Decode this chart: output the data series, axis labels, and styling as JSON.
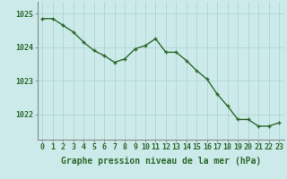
{
  "x": [
    0,
    1,
    2,
    3,
    4,
    5,
    6,
    7,
    8,
    9,
    10,
    11,
    12,
    13,
    14,
    15,
    16,
    17,
    18,
    19,
    20,
    21,
    22,
    23
  ],
  "y": [
    1024.85,
    1024.85,
    1024.65,
    1024.45,
    1024.15,
    1023.9,
    1023.75,
    1023.55,
    1023.65,
    1023.95,
    1024.05,
    1024.25,
    1023.85,
    1023.85,
    1023.6,
    1023.3,
    1023.05,
    1022.6,
    1022.25,
    1021.85,
    1021.85,
    1021.65,
    1021.65,
    1021.75
  ],
  "line_color": "#2d6a2d",
  "marker_color": "#2d6a2d",
  "bg_color": "#cceaea",
  "grid_color": "#b0d4d4",
  "axis_label_color": "#2d6a2d",
  "ylabel_ticks": [
    1022,
    1023,
    1024,
    1025
  ],
  "ylim": [
    1021.25,
    1025.35
  ],
  "xlim": [
    -0.5,
    23.5
  ],
  "xlabel": "Graphe pression niveau de la mer (hPa)",
  "xlabel_fontsize": 7,
  "tick_fontsize": 6,
  "line_width": 1.0,
  "marker_size": 2.5
}
